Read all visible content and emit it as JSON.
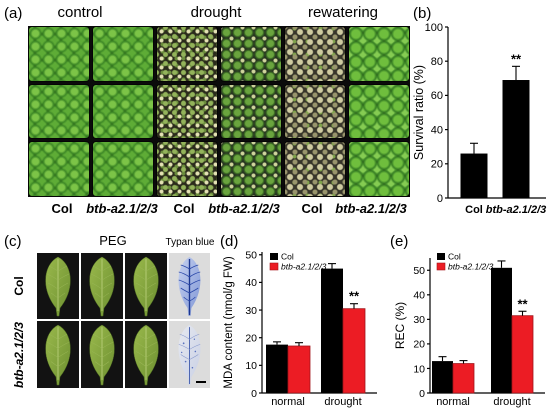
{
  "figure": {
    "panel_a": {
      "label": "(a)",
      "conditions": [
        "control",
        "drought",
        "rewatering"
      ],
      "genotype_labels": [
        "Col",
        "btb-a2.1/2/3",
        "Col",
        "btb-a2.1/2/3",
        "Col",
        "btb-a2.1/2/3"
      ]
    },
    "panel_c": {
      "label": "(c)",
      "treatment": "PEG",
      "stain": "Typan blue",
      "row_labels": [
        "Col",
        "btb-a2.1/2/3"
      ]
    }
  },
  "chart_data": [
    {
      "panel_label": "(b)",
      "type": "bar",
      "categories": [
        "Col",
        "btb-a2.1/2/3"
      ],
      "values": [
        26,
        69
      ],
      "errors": [
        6,
        8
      ],
      "ylabel": "Survival ratio (%)",
      "ylim": [
        0,
        100
      ],
      "yticks": [
        0,
        20,
        40,
        60,
        80,
        100
      ],
      "bar_color": "#000000",
      "grid": false,
      "annotations": [
        {
          "category": "btb-a2.1/2/3",
          "text": "**"
        }
      ]
    },
    {
      "panel_label": "(d)",
      "type": "bar",
      "categories": [
        "normal",
        "drought"
      ],
      "series": [
        {
          "name": "Col",
          "values": [
            17.5,
            45
          ],
          "errors": [
            1.0,
            1.8
          ],
          "color": "#000000"
        },
        {
          "name": "btb-a2.1/2/3",
          "values": [
            17,
            30.5
          ],
          "errors": [
            1.2,
            1.8
          ],
          "color": "#ec1c24"
        }
      ],
      "ylabel": "MDA content (nmol/g FW)",
      "ylim": [
        0,
        51
      ],
      "yticks": [
        0,
        10,
        20,
        30,
        40,
        50
      ],
      "legend": "top-left",
      "grid": false,
      "annotations": [
        {
          "category": "drought",
          "series": "btb-a2.1/2/3",
          "text": "**"
        }
      ]
    },
    {
      "panel_label": "(e)",
      "type": "bar",
      "categories": [
        "normal",
        "drought"
      ],
      "series": [
        {
          "name": "Col",
          "values": [
            13,
            51
          ],
          "errors": [
            1.8,
            2.8
          ],
          "color": "#000000"
        },
        {
          "name": "btb-a2.1/2/3",
          "values": [
            12,
            31.5
          ],
          "errors": [
            1.2,
            1.8
          ],
          "color": "#ec1c24"
        }
      ],
      "ylabel": "REC (%)",
      "ylim": [
        0,
        55
      ],
      "yticks": [
        0,
        10,
        20,
        30,
        40,
        50
      ],
      "legend": "top-left",
      "grid": false,
      "annotations": [
        {
          "category": "drought",
          "series": "btb-a2.1/2/3",
          "text": "**"
        }
      ]
    }
  ]
}
